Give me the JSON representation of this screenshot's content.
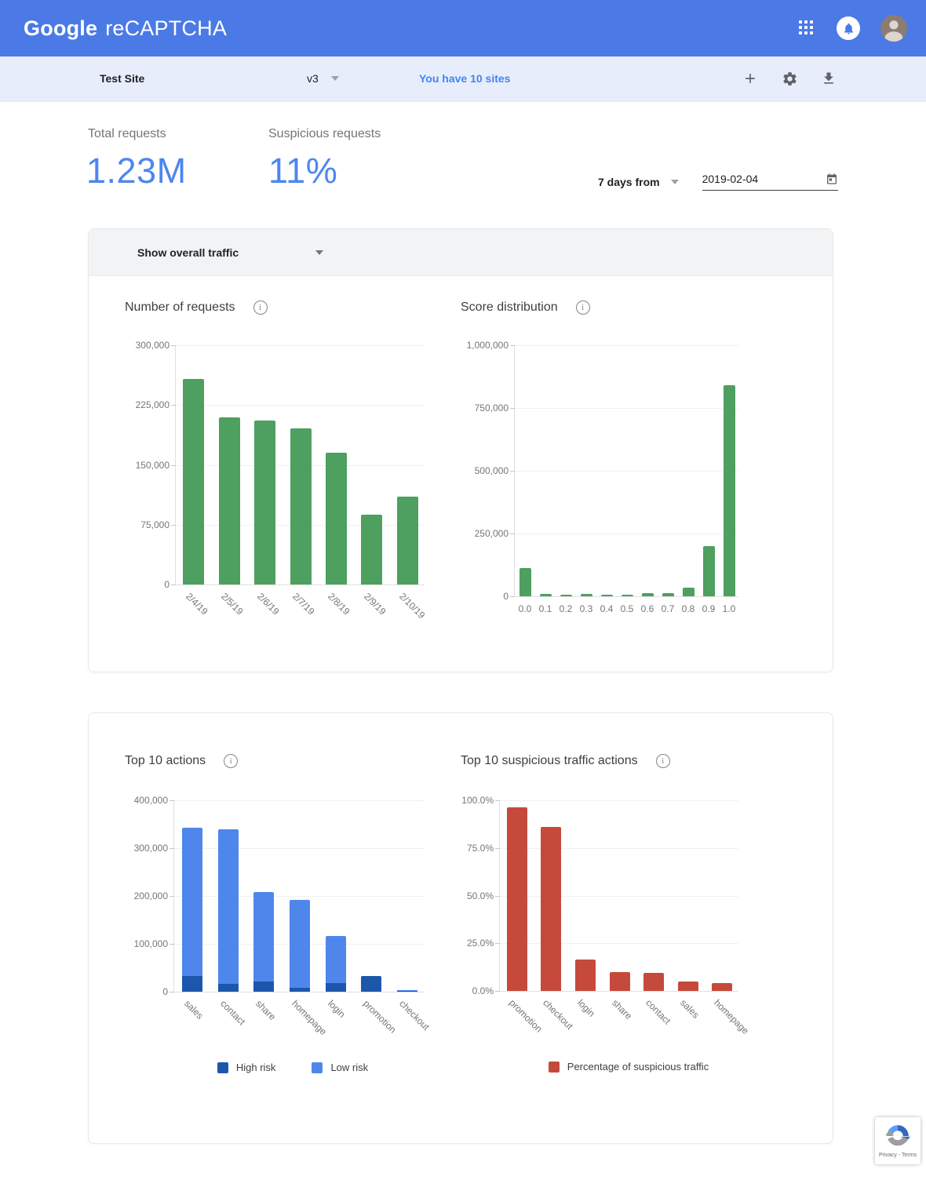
{
  "header": {
    "google": "Google",
    "product": "reCAPTCHA"
  },
  "toolbar": {
    "site_name": "Test Site",
    "version": "v3",
    "sites_link": "You have 10 sites"
  },
  "stats": {
    "total_label": "Total requests",
    "total_value": "1.23M",
    "suspicious_label": "Suspicious requests",
    "suspicious_value": "11%"
  },
  "date_filter": {
    "range_label": "7 days from",
    "date_value": "2019-02-04"
  },
  "overview_card": {
    "filter_label": "Show overall traffic"
  },
  "chart_data": [
    {
      "id": "number-of-requests",
      "type": "bar",
      "title": "Number of requests",
      "categories": [
        "2/4/19",
        "2/5/19",
        "2/6/19",
        "2/7/19",
        "2/8/19",
        "2/9/19",
        "2/10/19"
      ],
      "values": [
        258000,
        210000,
        206000,
        196000,
        165000,
        88000,
        110000
      ],
      "bar_color": "#4DA05F",
      "ylim": [
        0,
        300000
      ],
      "yticks": [
        {
          "v": 0,
          "label": "0"
        },
        {
          "v": 75000,
          "label": "75,000"
        },
        {
          "v": 150000,
          "label": "150,000"
        },
        {
          "v": 225000,
          "label": "225,000"
        },
        {
          "v": 300000,
          "label": "300,000"
        }
      ],
      "rotate_labels": true,
      "grid": true,
      "legend": []
    },
    {
      "id": "score-distribution",
      "type": "bar",
      "title": "Score distribution",
      "categories": [
        "0.0",
        "0.1",
        "0.2",
        "0.3",
        "0.4",
        "0.5",
        "0.6",
        "0.7",
        "0.8",
        "0.9",
        "1.0"
      ],
      "values": [
        112000,
        8000,
        6000,
        9000,
        7000,
        7000,
        14000,
        11000,
        34000,
        200000,
        840000
      ],
      "bar_color": "#4DA05F",
      "ylim": [
        0,
        1000000
      ],
      "yticks": [
        {
          "v": 0,
          "label": "0"
        },
        {
          "v": 250000,
          "label": "250,000"
        },
        {
          "v": 500000,
          "label": "500,000"
        },
        {
          "v": 750000,
          "label": "750,000"
        },
        {
          "v": 1000000,
          "label": "1,000,000"
        }
      ],
      "rotate_labels": false,
      "grid": true,
      "legend": []
    },
    {
      "id": "top-10-actions",
      "type": "stacked-bar",
      "title": "Top 10 actions",
      "categories": [
        "sales",
        "contact",
        "share",
        "homepage",
        "login",
        "promotion",
        "checkout"
      ],
      "series": [
        {
          "name": "High risk",
          "color": "#1D57AC",
          "values": [
            33000,
            16000,
            21000,
            8000,
            18000,
            33000,
            1000
          ]
        },
        {
          "name": "Low risk",
          "color": "#4E86EC",
          "values": [
            310000,
            323000,
            187000,
            184000,
            98000,
            0,
            2500
          ]
        }
      ],
      "ylim": [
        0,
        400000
      ],
      "yticks": [
        {
          "v": 0,
          "label": "0"
        },
        {
          "v": 100000,
          "label": "100,000"
        },
        {
          "v": 200000,
          "label": "200,000"
        },
        {
          "v": 300000,
          "label": "300,000"
        },
        {
          "v": 400000,
          "label": "400,000"
        }
      ],
      "rotate_labels": true,
      "grid": true,
      "legend_position": "bottom"
    },
    {
      "id": "top-10-suspicious-traffic-actions",
      "type": "bar",
      "title": "Top 10 suspicious traffic actions",
      "categories": [
        "promotion",
        "checkout",
        "login",
        "share",
        "contact",
        "sales",
        "homepage"
      ],
      "values": [
        96.5,
        86,
        16.5,
        10,
        9.5,
        5,
        4
      ],
      "bar_color": "#C64A3C",
      "legend_label": "Percentage of suspicious traffic",
      "ylim": [
        0,
        100
      ],
      "yticks": [
        {
          "v": 0,
          "label": "0.0%"
        },
        {
          "v": 25,
          "label": "25.0%"
        },
        {
          "v": 50,
          "label": "50.0%"
        },
        {
          "v": 75,
          "label": "75.0%"
        },
        {
          "v": 100,
          "label": "100.0%"
        }
      ],
      "rotate_labels": true,
      "grid": true,
      "legend_position": "bottom"
    }
  ],
  "badge": {
    "privacy_terms": "Privacy - Terms"
  },
  "colors": {
    "header_blue": "#4B7AE6",
    "link_blue": "#4285F4",
    "stat_blue": "#4C86F0",
    "green": "#4DA05F",
    "high_risk_blue": "#1D57AC",
    "low_risk_blue": "#4E86EC",
    "suspicious_red": "#C64A3C"
  }
}
